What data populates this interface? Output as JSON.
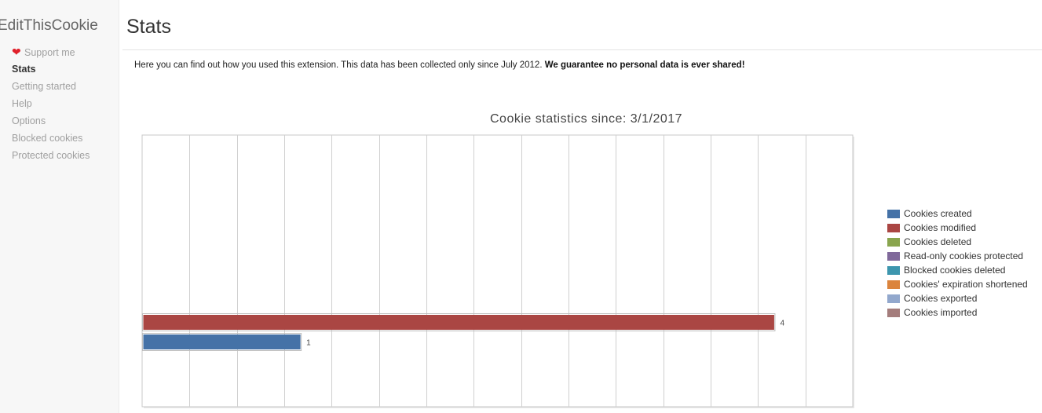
{
  "sidebar": {
    "brand": "EditThisCookie",
    "items": [
      {
        "label": "Support me",
        "icon": "heart-icon"
      },
      {
        "label": "Stats"
      },
      {
        "label": "Getting started"
      },
      {
        "label": "Help"
      },
      {
        "label": "Options"
      },
      {
        "label": "Blocked cookies"
      },
      {
        "label": "Protected cookies"
      }
    ]
  },
  "main": {
    "title": "Stats",
    "intro_text": "Here you can find out how you used this extension. This data has been collected only since July 2012. ",
    "intro_bold": "We guarantee no personal data is ever shared!"
  },
  "chart_data": {
    "type": "bar",
    "orientation": "horizontal",
    "title": "Cookie statistics since: 3/1/2017",
    "grid": true,
    "xlim": [
      0,
      4.5
    ],
    "series": [
      {
        "name": "Cookies created",
        "color": "#4572a7",
        "value": 1
      },
      {
        "name": "Cookies modified",
        "color": "#aa4643",
        "value": 4
      },
      {
        "name": "Cookies deleted",
        "color": "#89a54e",
        "value": 0
      },
      {
        "name": "Read-only cookies protected",
        "color": "#80699b",
        "value": 0
      },
      {
        "name": "Blocked cookies deleted",
        "color": "#3d96ae",
        "value": 0
      },
      {
        "name": "Cookies' expiration shortened",
        "color": "#db843d",
        "value": 0
      },
      {
        "name": "Cookies exported",
        "color": "#92a8cd",
        "value": 0
      },
      {
        "name": "Cookies imported",
        "color": "#a47d7c",
        "value": 0
      }
    ],
    "legend_position": "right"
  }
}
